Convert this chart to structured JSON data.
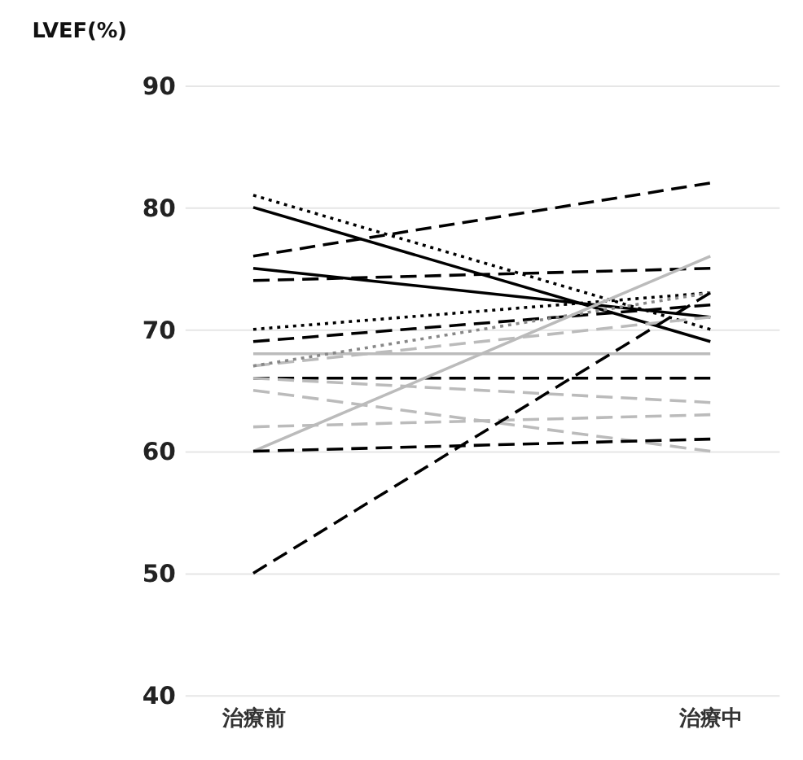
{
  "chart_data": {
    "type": "line",
    "ylabel": "LVEF(%)",
    "categories": [
      "治療前",
      "治療中"
    ],
    "ylim": [
      40,
      90
    ],
    "yticks": [
      40,
      50,
      60,
      70,
      80,
      90
    ],
    "grid": "y",
    "marker": "none",
    "series": [
      {
        "color": "#000000",
        "line_style": "dotted",
        "values": [
          81,
          70
        ]
      },
      {
        "color": "#000000",
        "line_style": "solid",
        "values": [
          80,
          69
        ]
      },
      {
        "color": "#000000",
        "line_style": "dashed",
        "values": [
          76,
          82
        ]
      },
      {
        "color": "#000000",
        "line_style": "solid",
        "values": [
          75,
          71
        ]
      },
      {
        "color": "#000000",
        "line_style": "dashed",
        "values": [
          74,
          75
        ]
      },
      {
        "color": "#000000",
        "line_style": "dotted",
        "values": [
          70,
          73
        ]
      },
      {
        "color": "#000000",
        "line_style": "dashed",
        "values": [
          69,
          72
        ]
      },
      {
        "color": "#bbbbbb",
        "line_style": "solid",
        "values": [
          68,
          68
        ]
      },
      {
        "color": "#bbbbbb",
        "line_style": "dashed",
        "values": [
          67,
          71
        ]
      },
      {
        "color": "#888888",
        "line_style": "dotted",
        "values": [
          67,
          73
        ]
      },
      {
        "color": "#000000",
        "line_style": "dashed",
        "values": [
          66,
          66
        ]
      },
      {
        "color": "#bbbbbb",
        "line_style": "dashed",
        "values": [
          66,
          64
        ]
      },
      {
        "color": "#bbbbbb",
        "line_style": "dashed",
        "values": [
          65,
          60
        ]
      },
      {
        "color": "#bbbbbb",
        "line_style": "dashed",
        "values": [
          62,
          63
        ]
      },
      {
        "color": "#bbbbbb",
        "line_style": "solid",
        "values": [
          60,
          76
        ]
      },
      {
        "color": "#000000",
        "line_style": "dashed",
        "values": [
          60,
          61
        ]
      },
      {
        "color": "#000000",
        "line_style": "dashed",
        "values": [
          50,
          73
        ]
      }
    ]
  }
}
